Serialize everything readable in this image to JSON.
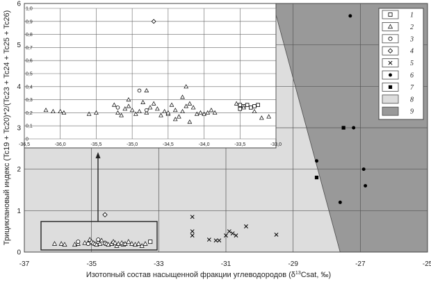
{
  "chart_data": [
    {
      "type": "scatter",
      "panel": "main",
      "xlabel_main": "Изотопный состав насыщенной фракции углеводородов (δ",
      "xlabel_sup": "13",
      "xlabel_tail": "Csat, ‰)",
      "ylabel": "Трициклановый индекс (Tc19 + Tc20)*2/(Tc23 + Tc24 + Tc25 + Tc26)",
      "xlim": [
        -37,
        -25
      ],
      "ylim": [
        0,
        6
      ],
      "xticks": [
        "-37",
        "-35",
        "-33",
        "-31",
        "-29",
        "-27",
        "-25"
      ],
      "yticks": [
        "0",
        "1",
        "2",
        "3",
        "4",
        "5",
        "6"
      ],
      "regions": [
        {
          "legend": "8",
          "color": "#dddddd",
          "polygon": [
            [
              -37,
              0
            ],
            [
              -27.6,
              0
            ],
            [
              -29.6,
              6
            ],
            [
              -37,
              6
            ]
          ]
        },
        {
          "legend": "9",
          "color": "#999999",
          "polygon": [
            [
              -27.6,
              0
            ],
            [
              -25,
              0
            ],
            [
              -25,
              6
            ],
            [
              -29.6,
              6
            ]
          ]
        }
      ],
      "series": [
        {
          "legend": "1",
          "marker": "square-open",
          "points": [
            [
              -33.25,
              0.25
            ]
          ]
        },
        {
          "legend": "2",
          "marker": "triangle-open",
          "points": [
            [
              -36.1,
              0.2
            ],
            [
              -35.9,
              0.2
            ],
            [
              -35.8,
              0.18
            ],
            [
              -35.5,
              0.18
            ],
            [
              -35.4,
              0.2
            ],
            [
              -35.2,
              0.22
            ],
            [
              -35.1,
              0.22
            ],
            [
              -35.05,
              0.3
            ],
            [
              -35.0,
              0.25
            ],
            [
              -34.95,
              0.22
            ],
            [
              -34.9,
              0.2
            ],
            [
              -34.85,
              0.18
            ],
            [
              -34.8,
              0.25
            ],
            [
              -34.75,
              0.2
            ],
            [
              -34.7,
              0.28
            ],
            [
              -34.6,
              0.22
            ],
            [
              -34.55,
              0.2
            ],
            [
              -34.5,
              0.18
            ],
            [
              -34.4,
              0.2
            ],
            [
              -34.35,
              0.25
            ],
            [
              -34.3,
              0.22
            ],
            [
              -34.25,
              0.15
            ],
            [
              -34.2,
              0.2
            ],
            [
              -34.1,
              0.22
            ],
            [
              -34.05,
              0.18
            ],
            [
              -34.0,
              0.2
            ],
            [
              -33.9,
              0.25
            ],
            [
              -33.8,
              0.2
            ],
            [
              -33.7,
              0.18
            ],
            [
              -33.6,
              0.2
            ],
            [
              -33.5,
              0.15
            ],
            [
              -33.4,
              0.2
            ]
          ]
        },
        {
          "legend": "3",
          "marker": "circle-open",
          "points": [
            [
              -35.4,
              0.25
            ],
            [
              -35.1,
              0.2
            ],
            [
              -34.8,
              0.3
            ]
          ]
        },
        {
          "legend": "4",
          "marker": "diamond-open",
          "points": [
            [
              -34.6,
              0.9
            ]
          ]
        },
        {
          "legend": "5",
          "marker": "x",
          "points": [
            [
              -32.0,
              0.85
            ],
            [
              -32.0,
              0.5
            ],
            [
              -32.0,
              0.4
            ],
            [
              -31.5,
              0.3
            ],
            [
              -31.3,
              0.28
            ],
            [
              -31.2,
              0.28
            ],
            [
              -31.0,
              0.4
            ],
            [
              -30.9,
              0.5
            ],
            [
              -30.8,
              0.45
            ],
            [
              -30.7,
              0.4
            ],
            [
              -30.4,
              0.62
            ],
            [
              -29.5,
              0.42
            ]
          ]
        },
        {
          "legend": "6",
          "marker": "circle-filled",
          "points": [
            [
              -27.3,
              5.7
            ],
            [
              -27.2,
              3.0
            ],
            [
              -28.3,
              2.2
            ],
            [
              -26.9,
              2.0
            ],
            [
              -26.85,
              1.6
            ],
            [
              -27.6,
              1.2
            ]
          ]
        },
        {
          "legend": "7",
          "marker": "square-filled",
          "points": [
            [
              -27.5,
              3.0
            ],
            [
              -28.3,
              1.8
            ]
          ]
        }
      ],
      "legend": [
        "1",
        "2",
        "3",
        "4",
        "5",
        "6",
        "7",
        "8",
        "9"
      ]
    },
    {
      "type": "scatter",
      "panel": "inset",
      "xlim": [
        -36.5,
        -33.0
      ],
      "ylim": [
        0,
        1.0
      ],
      "xticks": [
        "-36,5",
        "-36,0",
        "-35,5",
        "-35,0",
        "-34,5",
        "-34,0",
        "-33,5",
        "-33,0"
      ],
      "yticks": [
        "0",
        "0,1",
        "0,2",
        "0,3",
        "0,4",
        "0,5",
        "0,6",
        "0,7",
        "0,8",
        "0,9",
        "1,0"
      ],
      "series": [
        {
          "legend": "1",
          "marker": "square-open",
          "points": [
            [
              -33.5,
              0.23
            ],
            [
              -33.45,
              0.25
            ],
            [
              -33.4,
              0.26
            ],
            [
              -33.35,
              0.24
            ],
            [
              -33.3,
              0.25
            ],
            [
              -33.25,
              0.26
            ],
            [
              -33.5,
              0.26
            ]
          ]
        },
        {
          "legend": "2",
          "marker": "triangle-open",
          "points": [
            [
              -36.2,
              0.22
            ],
            [
              -36.1,
              0.21
            ],
            [
              -36.0,
              0.21
            ],
            [
              -35.95,
              0.2
            ],
            [
              -35.6,
              0.19
            ],
            [
              -35.5,
              0.2
            ],
            [
              -35.25,
              0.26
            ],
            [
              -35.2,
              0.2
            ],
            [
              -35.15,
              0.18
            ],
            [
              -35.1,
              0.23
            ],
            [
              -35.05,
              0.25
            ],
            [
              -35.0,
              0.22
            ],
            [
              -34.95,
              0.19
            ],
            [
              -34.9,
              0.21
            ],
            [
              -34.85,
              0.28
            ],
            [
              -34.8,
              0.2
            ],
            [
              -34.75,
              0.24
            ],
            [
              -34.7,
              0.27
            ],
            [
              -34.65,
              0.23
            ],
            [
              -34.6,
              0.18
            ],
            [
              -34.55,
              0.21
            ],
            [
              -34.5,
              0.19
            ],
            [
              -34.45,
              0.26
            ],
            [
              -34.4,
              0.22
            ],
            [
              -34.35,
              0.17
            ],
            [
              -34.3,
              0.32
            ],
            [
              -34.25,
              0.25
            ],
            [
              -34.2,
              0.13
            ],
            [
              -34.15,
              0.24
            ],
            [
              -34.1,
              0.19
            ],
            [
              -34.05,
              0.2
            ],
            [
              -34.0,
              0.19
            ],
            [
              -33.95,
              0.2
            ],
            [
              -33.9,
              0.22
            ],
            [
              -33.85,
              0.2
            ],
            [
              -33.55,
              0.27
            ],
            [
              -33.45,
              0.24
            ],
            [
              -33.3,
              0.21
            ],
            [
              -33.2,
              0.16
            ],
            [
              -33.1,
              0.17
            ],
            [
              -35.05,
              0.3
            ],
            [
              -34.8,
              0.37
            ],
            [
              -34.5,
              0.2
            ],
            [
              -34.4,
              0.15
            ],
            [
              -34.3,
              0.21
            ],
            [
              -34.25,
              0.4
            ],
            [
              -34.2,
              0.27
            ]
          ]
        },
        {
          "legend": "3",
          "marker": "circle-open",
          "points": [
            [
              -34.9,
              0.37
            ],
            [
              -34.8,
              0.22
            ],
            [
              -35.2,
              0.24
            ]
          ]
        },
        {
          "legend": "4",
          "marker": "diamond-open",
          "points": [
            [
              -34.7,
              0.9
            ]
          ]
        }
      ]
    }
  ]
}
